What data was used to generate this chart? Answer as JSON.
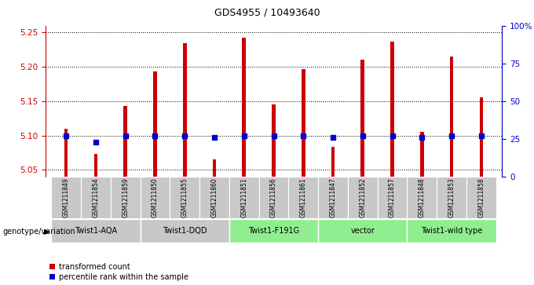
{
  "title": "GDS4955 / 10493640",
  "samples": [
    "GSM1211849",
    "GSM1211854",
    "GSM1211859",
    "GSM1211850",
    "GSM1211855",
    "GSM1211860",
    "GSM1211851",
    "GSM1211856",
    "GSM1211861",
    "GSM1211847",
    "GSM1211852",
    "GSM1211857",
    "GSM1211848",
    "GSM1211853",
    "GSM1211858"
  ],
  "red_values": [
    5.11,
    5.073,
    5.143,
    5.193,
    5.235,
    5.065,
    5.243,
    5.145,
    5.197,
    5.083,
    5.21,
    5.237,
    5.105,
    5.215,
    5.155
  ],
  "blue_values": [
    27,
    23,
    27,
    27,
    27,
    26,
    27,
    27,
    27,
    26,
    27,
    27,
    26,
    27,
    27
  ],
  "ylim_left": [
    5.04,
    5.26
  ],
  "ylim_right": [
    0,
    100
  ],
  "yticks_left": [
    5.05,
    5.1,
    5.15,
    5.2,
    5.25
  ],
  "yticks_right": [
    0,
    25,
    50,
    75,
    100
  ],
  "ytick_right_labels": [
    "0",
    "25",
    "50",
    "75",
    "100%"
  ],
  "groups": [
    {
      "label": "Twist1-AQA",
      "start": 0,
      "end": 3,
      "color": "#c8c8c8"
    },
    {
      "label": "Twist1-DQD",
      "start": 3,
      "end": 6,
      "color": "#c8c8c8"
    },
    {
      "label": "Twist1-F191G",
      "start": 6,
      "end": 9,
      "color": "#90ee90"
    },
    {
      "label": "vector",
      "start": 9,
      "end": 12,
      "color": "#90ee90"
    },
    {
      "label": "Twist1-wild type",
      "start": 12,
      "end": 15,
      "color": "#90ee90"
    }
  ],
  "genotype_label": "genotype/variation",
  "legend_red": "transformed count",
  "legend_blue": "percentile rank within the sample",
  "bar_color": "#cc0000",
  "dot_color": "#0000cc",
  "dot_size": 20,
  "bar_width": 0.12,
  "grid_color": "#000000",
  "bg_xticklabel": "#c8c8c8",
  "title_fontsize": 9,
  "tick_fontsize": 7.5,
  "sample_fontsize": 5.5,
  "group_fontsize": 7,
  "legend_fontsize": 7
}
